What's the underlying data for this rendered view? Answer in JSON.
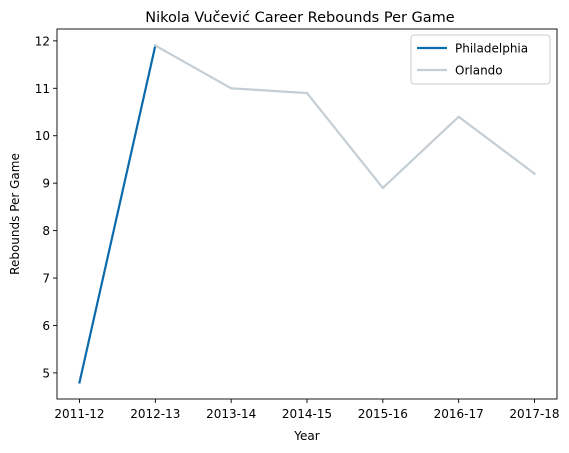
{
  "chart_data": {
    "type": "line",
    "title": "Nikola Vučević Career Rebounds Per Game",
    "xlabel": "Year",
    "ylabel": "Rebounds Per Game",
    "categories": [
      "2011-12",
      "2012-13",
      "2013-14",
      "2014-15",
      "2015-16",
      "2016-17",
      "2017-18"
    ],
    "yticks": [
      5,
      6,
      7,
      8,
      9,
      10,
      11,
      12
    ],
    "ylim": [
      4.45,
      12.25
    ],
    "grid": false,
    "legend_position": "top-right",
    "series": [
      {
        "name": "Philadelphia",
        "color": "#0b6aab",
        "points": [
          {
            "x": "2011-12",
            "y": 4.8
          },
          {
            "x": "2012-13",
            "y": 11.9
          }
        ]
      },
      {
        "name": "Orlando",
        "color": "#c4ced4",
        "points": [
          {
            "x": "2012-13",
            "y": 11.9
          },
          {
            "x": "2013-14",
            "y": 11.0
          },
          {
            "x": "2014-15",
            "y": 10.9
          },
          {
            "x": "2015-16",
            "y": 8.9
          },
          {
            "x": "2016-17",
            "y": 10.4
          },
          {
            "x": "2017-18",
            "y": 9.2
          }
        ]
      }
    ]
  }
}
